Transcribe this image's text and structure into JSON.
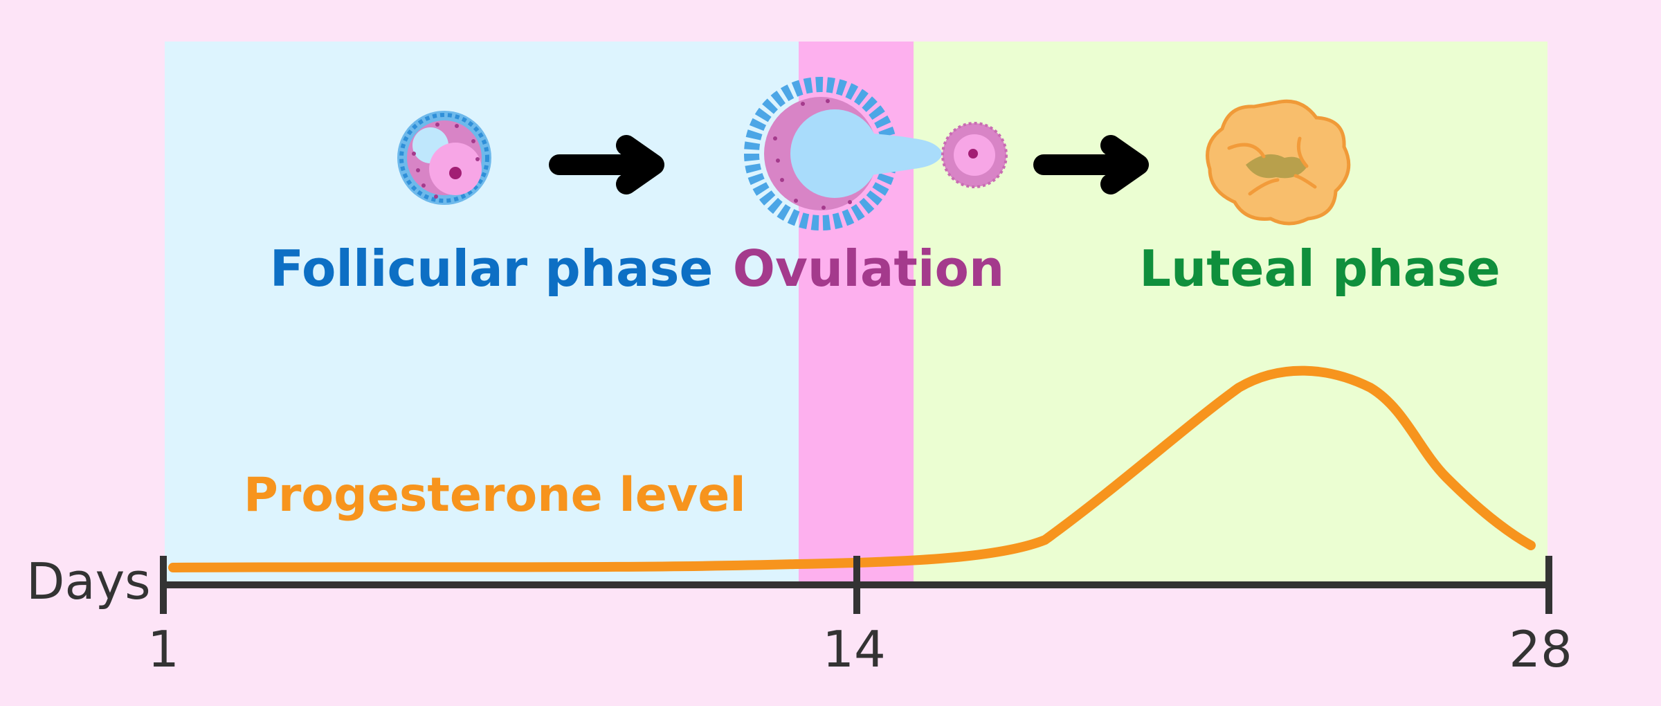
{
  "labels": {
    "follicular": "Follicular phase",
    "ovulation": "Ovulation",
    "luteal": "Luteal phase",
    "progesterone": "Progesterone level",
    "axis_title": "Days"
  },
  "axis": {
    "ticks": [
      {
        "day": 1,
        "label": "1"
      },
      {
        "day": 14,
        "label": "14"
      },
      {
        "day": 28,
        "label": "28"
      }
    ]
  },
  "colors": {
    "page_background": "#fde4f7",
    "follicular_band": "#ddf4fe",
    "ovulation_band": "#fdb0ee",
    "luteal_band": "#ebfed2",
    "follicular_text": "#0d6fc4",
    "ovulation_text": "#a43a8c",
    "luteal_text": "#0f8f3c",
    "progesterone": "#f7941d",
    "axis": "#333333",
    "arrow": "#000000"
  },
  "icons": [
    "follicle-icon",
    "arrow-right-icon",
    "ruptured-follicle-icon",
    "egg-cell-icon",
    "arrow-right-icon",
    "corpus-luteum-icon"
  ]
}
